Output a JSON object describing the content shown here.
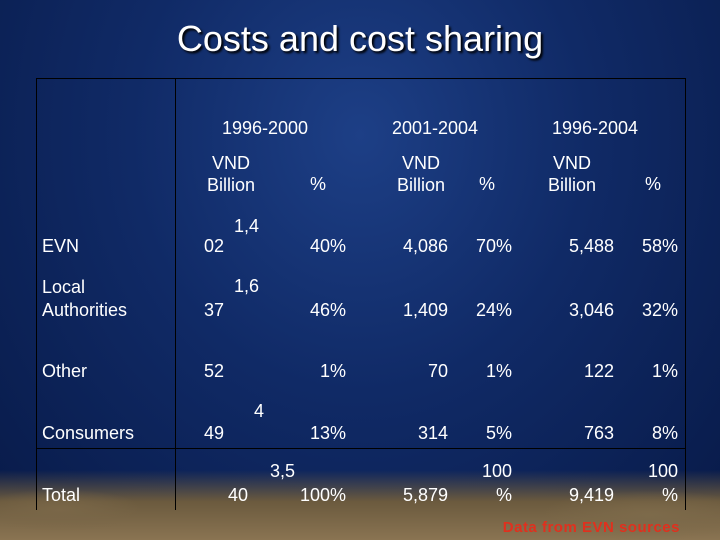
{
  "title": "Costs and cost sharing",
  "periods": [
    "1996-2000",
    "2001-2004",
    "1996-2004"
  ],
  "units": {
    "vnd": "VND Billion",
    "pct": "%"
  },
  "rows": [
    {
      "label": "EVN",
      "p1_vnd_top": "1,4",
      "p1_vnd_bottom": "02",
      "p1_pct": "40%",
      "p2_vnd": "4,086",
      "p2_pct": "70%",
      "p3_vnd": "5,488",
      "p3_pct": "58%"
    },
    {
      "label": "Local Authorities",
      "p1_vnd_top": "1,6",
      "p1_vnd_bottom": "37",
      "p1_pct": "46%",
      "p2_vnd": "1,409",
      "p2_pct": "24%",
      "p3_vnd": "3,046",
      "p3_pct": "32%"
    },
    {
      "label": "Other",
      "p1_vnd_top": "",
      "p1_vnd_bottom": "52",
      "p1_pct": "1%",
      "p2_vnd": "70",
      "p2_pct": "1%",
      "p3_vnd": "122",
      "p3_pct": "1%"
    },
    {
      "label": "Consumers",
      "p1_vnd_top": "4",
      "p1_vnd_bottom": "49",
      "p1_pct": "13%",
      "p2_vnd": "314",
      "p2_pct": "5%",
      "p3_vnd": "763",
      "p3_pct": "8%"
    },
    {
      "label": "Total",
      "p1_vnd_top": "3,5",
      "p1_vnd_bottom": "40",
      "p1_pct": "100%",
      "p2_vnd": "5,879",
      "p2_pct_top": "100",
      "p2_pct_bottom": "%",
      "p3_vnd": "9,419",
      "p3_pct_top": "100",
      "p3_pct_bottom": "%"
    }
  ],
  "source": "Data from EVN sources"
}
